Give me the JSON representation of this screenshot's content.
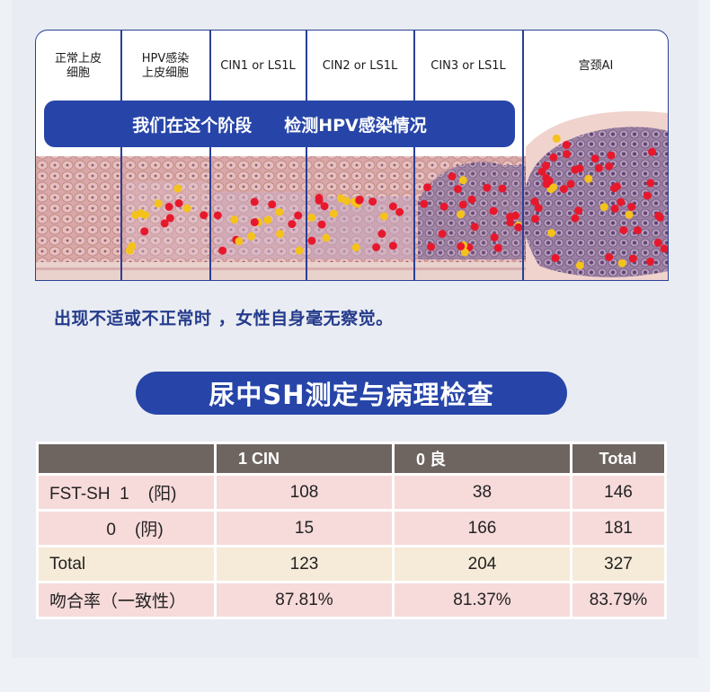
{
  "diagram": {
    "stages": [
      {
        "label": "正常上皮\n细胞"
      },
      {
        "label": "HPV感染\n上皮细胞"
      },
      {
        "label": "CIN1 or LS1L"
      },
      {
        "label": "CIN2 or LS1L"
      },
      {
        "label": "CIN3 or LS1L"
      },
      {
        "label": "宫颈AI"
      }
    ],
    "banner_left": "我们在这个阶段",
    "banner_right": "检测HPV感染情况"
  },
  "note": "出现不适或不正常时 ，女性自身毫无察觉。",
  "section_title": "尿中SH测定与病理检查",
  "table": {
    "headers": [
      "",
      "1   CIN",
      "0   良",
      "Total"
    ],
    "rows": [
      {
        "label": "FST-SH  1    (阳)",
        "values": [
          "108",
          "38",
          "146"
        ]
      },
      {
        "label": "            0    (阴)",
        "values": [
          "15",
          "166",
          "181"
        ]
      },
      {
        "label": "Total",
        "values": [
          "123",
          "204",
          "327"
        ]
      },
      {
        "label": "吻合率（一致性）",
        "values": [
          "87.81%",
          "81.37%",
          "83.79%"
        ]
      }
    ]
  },
  "colors": {
    "brand_blue": "#2745a8",
    "header_gray": "#6e6560",
    "row_pink": "#f7dada",
    "row_cream": "#f6ead8",
    "virus_yellow": "#f5c21b",
    "virus_red": "#e8182c"
  }
}
